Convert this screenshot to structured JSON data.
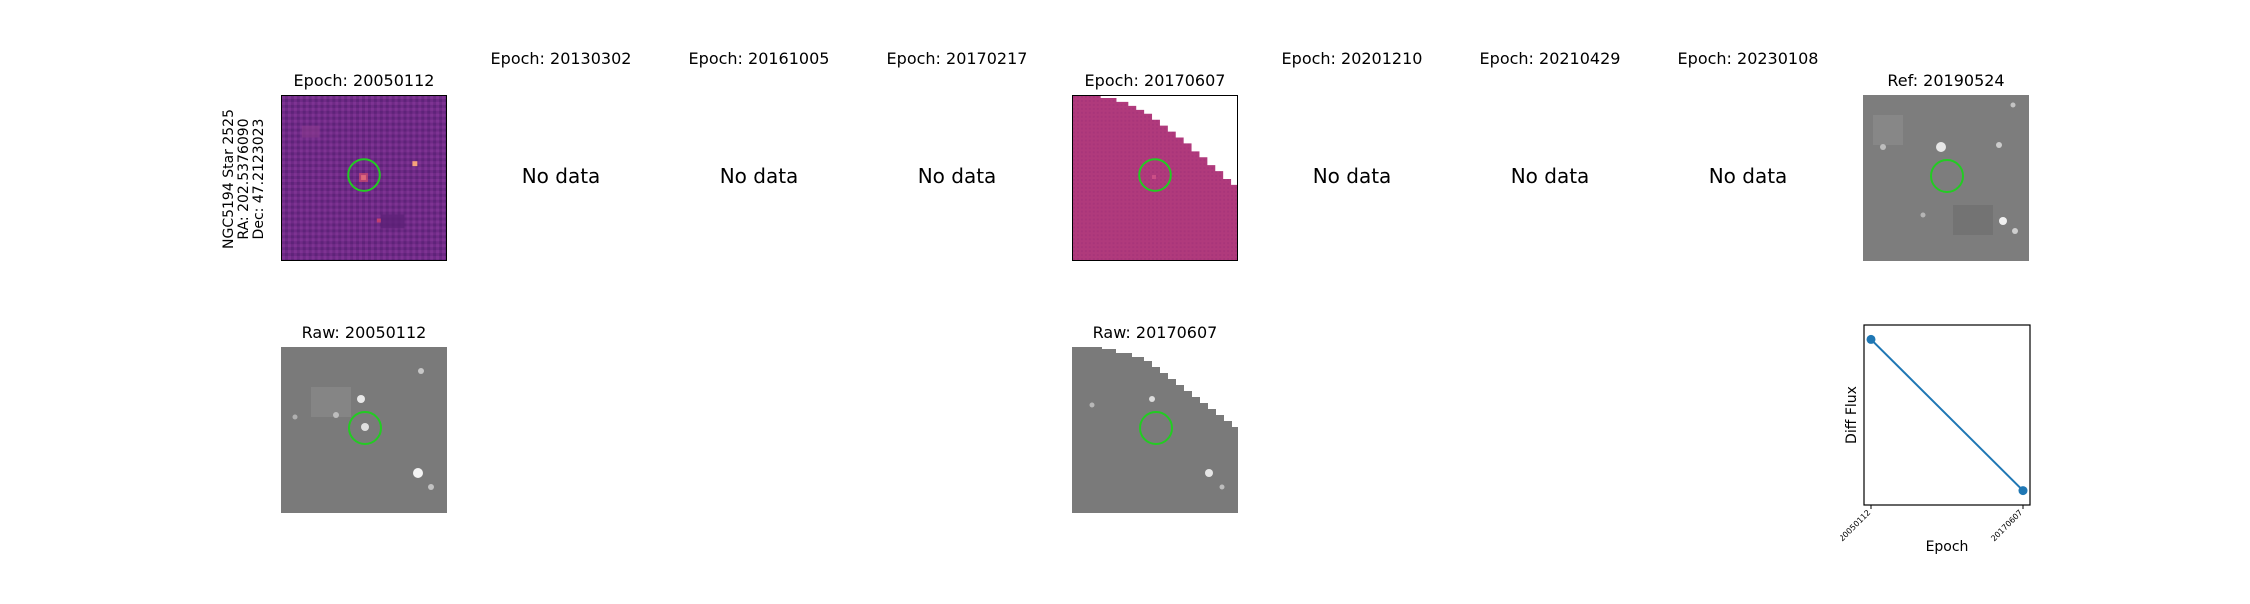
{
  "object": {
    "name": "NGC5194 Star 2525",
    "ra": "RA: 202.5376090",
    "dec": "Dec: 47.2123023"
  },
  "epochs": [
    {
      "title": "Epoch: 20050112",
      "status": "image"
    },
    {
      "title": "Epoch: 20130302",
      "status": "No data"
    },
    {
      "title": "Epoch: 20161005",
      "status": "No data"
    },
    {
      "title": "Epoch: 20170217",
      "status": "No data"
    },
    {
      "title": "Epoch: 20170607",
      "status": "image"
    },
    {
      "title": "Epoch: 20201210",
      "status": "No data"
    },
    {
      "title": "Epoch: 20210429",
      "status": "No data"
    },
    {
      "title": "Epoch: 20230108",
      "status": "No data"
    }
  ],
  "reference": {
    "title": "Ref: 20190524"
  },
  "raw": [
    {
      "title": "Raw: 20050112"
    },
    {
      "title": "Raw: 20170607"
    }
  ],
  "colors": {
    "diff_cmap_bg": "#7a2f8a",
    "diff_cmap_bg2": "#b23a7a",
    "circle": "#22cc22",
    "line": "#1f77b4",
    "raw_bg": "#7d7d7d"
  },
  "chart_data": {
    "type": "line",
    "x": [
      "20050112",
      "20170607"
    ],
    "series": [
      {
        "values": [
          0.92,
          0.08
        ]
      }
    ],
    "xlabel": "Epoch",
    "ylabel": "Diff Flux",
    "ylim": [
      0,
      1
    ],
    "yticks_visible": false,
    "grid": false
  }
}
